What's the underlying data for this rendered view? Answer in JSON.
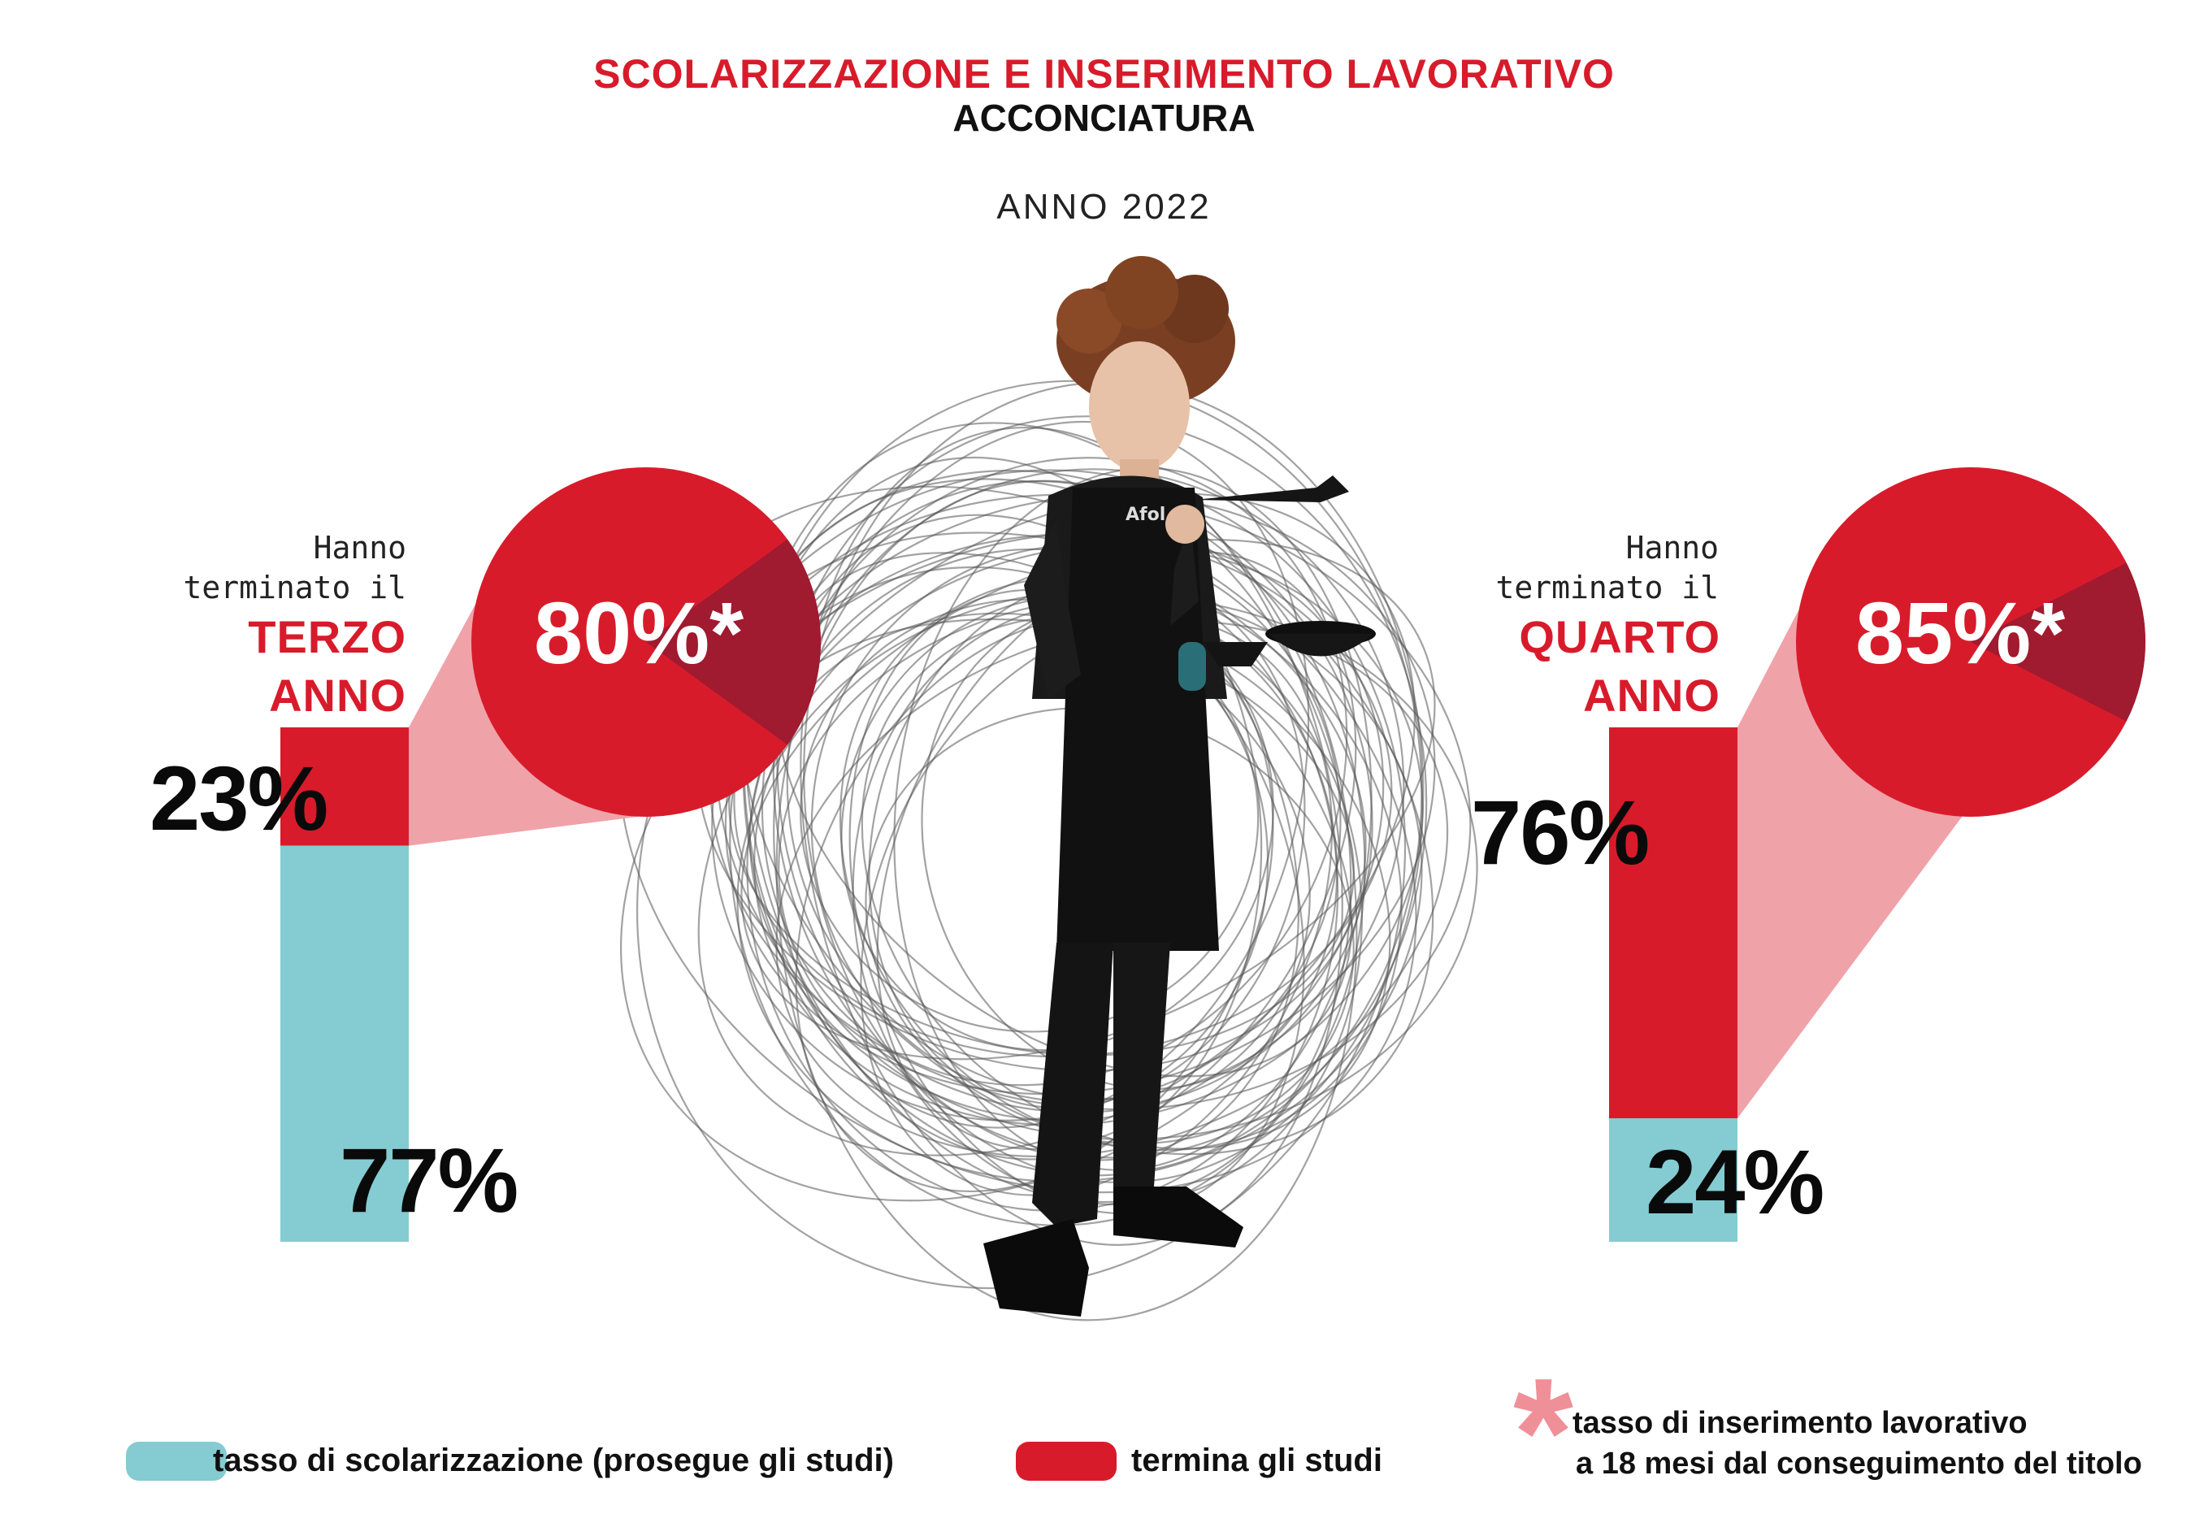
{
  "header": {
    "title": "SCOLARIZZAZIONE E INSERIMENTO LAVORATIVO",
    "subtitle": "ACCONCIATURA",
    "year": "ANNO 2022"
  },
  "colors": {
    "scolarizzazione": "#84ccd1",
    "termina": "#d81b2b",
    "pie_main": "#d81b2b",
    "pie_dark": "#a01a30",
    "connector": "#f0a2a9",
    "asterisk": "#ef8f98"
  },
  "chart_data": [
    {
      "type": "bar",
      "lead_line1": "Hanno",
      "lead_line2": "terminato il",
      "group": "TERZO ANNO",
      "series": [
        {
          "name": "termina gli studi",
          "value": 23,
          "label": "23%"
        },
        {
          "name": "tasso di scolarizzazione (prosegue gli studi)",
          "value": 77,
          "label": "77%"
        }
      ],
      "pie": {
        "value": 80,
        "label": "80%*"
      }
    },
    {
      "type": "bar",
      "lead_line1": "Hanno",
      "lead_line2": "terminato il",
      "group": "QUARTO ANNO",
      "series": [
        {
          "name": "termina gli studi",
          "value": 76,
          "label": "76%"
        },
        {
          "name": "tasso di scolarizzazione (prosegue gli studi)",
          "value": 24,
          "label": "24%"
        }
      ],
      "pie": {
        "value": 85,
        "label": "85%*"
      }
    }
  ],
  "legend": {
    "scolarizzazione": "tasso di scolarizzazione (prosegue gli studi)",
    "termina": "termina gli studi"
  },
  "footnote": {
    "line1": "tasso di inserimento lavorativo",
    "line2": "a 18 mesi dal conseguimento del titolo"
  }
}
